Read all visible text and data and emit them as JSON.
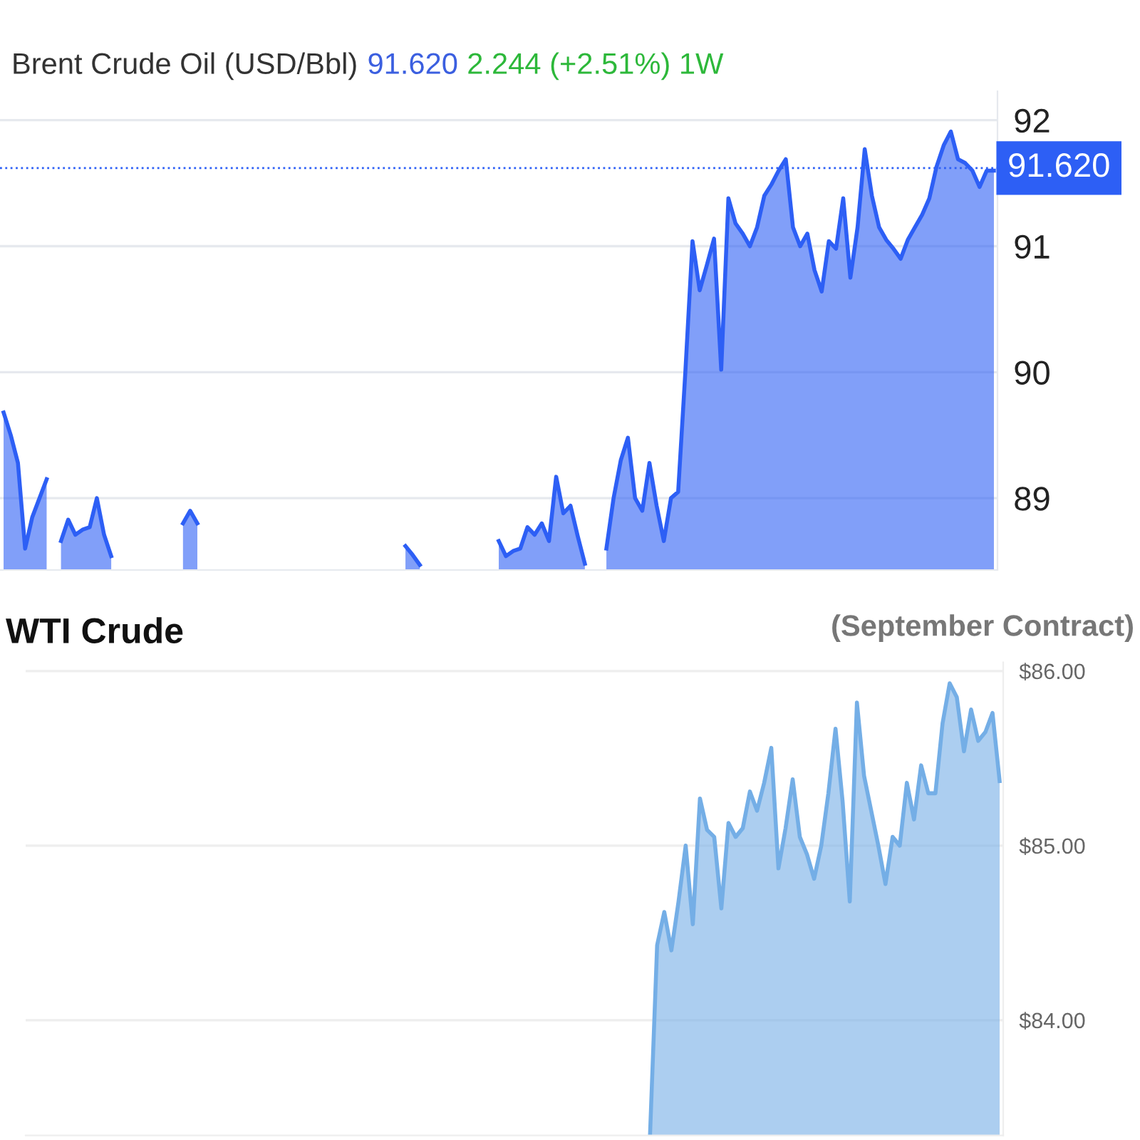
{
  "chart_data": [
    {
      "type": "area",
      "title": "Brent Crude Oil (USD/Bbl)",
      "annotations": [
        "91.620",
        "2.244 (+2.51%) 1W"
      ],
      "categories": [
        null,
        null,
        null,
        null,
        null,
        null,
        null,
        null,
        null,
        null,
        null,
        null,
        null,
        null,
        null,
        null,
        null,
        null,
        null,
        null,
        null,
        null,
        null,
        null,
        null,
        null,
        null,
        null,
        null,
        null,
        null,
        null,
        null,
        null,
        null,
        null,
        null,
        null,
        null,
        null,
        null,
        null,
        null,
        null,
        null,
        null,
        null,
        null,
        null,
        null,
        null,
        null,
        null,
        null,
        null,
        null,
        null,
        null,
        null,
        null,
        null,
        null,
        null,
        null,
        null,
        null,
        null,
        null,
        null,
        null,
        null,
        null,
        null,
        null,
        null,
        null,
        null,
        null,
        null,
        null,
        null,
        null,
        null,
        null,
        null,
        null,
        null,
        null,
        null,
        null,
        null,
        null,
        null,
        null,
        null,
        null,
        null,
        null,
        null,
        null,
        null,
        null,
        null,
        null,
        null,
        null,
        null,
        null,
        null,
        null,
        null,
        null,
        null,
        null,
        null,
        null,
        null,
        null,
        null,
        null,
        null,
        null,
        null,
        null,
        null,
        null,
        null,
        null,
        null,
        null,
        null,
        null,
        null,
        null,
        null,
        null,
        null,
        null,
        null
      ],
      "series": [
        {
          "color": "#2d5ff5",
          "values": [
            89.68,
            89.5,
            89.28,
            88.6,
            88.85,
            89.0,
            89.15,
            null,
            88.66,
            88.83,
            88.71,
            88.75,
            88.77,
            89.0,
            88.71,
            88.54,
            null,
            null,
            null,
            null,
            null,
            null,
            null,
            null,
            null,
            88.8,
            88.9,
            88.8,
            null,
            null,
            null,
            null,
            null,
            null,
            null,
            null,
            null,
            null,
            null,
            null,
            null,
            null,
            null,
            null,
            null,
            null,
            null,
            null,
            null,
            null,
            null,
            null,
            null,
            null,
            null,
            null,
            88.62,
            88.55,
            88.47,
            null,
            null,
            null,
            null,
            null,
            null,
            null,
            null,
            null,
            null,
            88.66,
            88.54,
            88.58,
            88.6,
            88.77,
            88.71,
            88.8,
            88.66,
            89.17,
            88.88,
            88.94,
            88.7,
            88.48,
            null,
            null,
            88.6,
            89.0,
            89.3,
            89.48,
            89.0,
            88.9,
            89.28,
            88.94,
            88.66,
            89.0,
            89.05,
            90.0,
            91.04,
            90.65,
            90.85,
            91.06,
            90.02,
            91.38,
            91.18,
            91.1,
            91.0,
            91.15,
            91.4,
            91.49,
            91.6,
            91.69,
            91.15,
            91.0,
            91.1,
            90.81,
            90.64,
            91.04,
            90.98,
            91.38,
            90.75,
            91.15,
            91.77,
            91.4,
            91.15,
            91.05,
            90.98,
            90.9,
            91.05,
            91.15,
            91.25,
            91.38,
            91.63,
            91.8,
            91.91,
            91.69,
            91.66,
            91.6,
            91.47,
            91.6,
            91.6
          ]
        }
      ],
      "ylim": [
        88.43,
        92.23
      ],
      "yticks": [
        89,
        90,
        91,
        92
      ],
      "grid": "y",
      "ref_lines": [
        {
          "axis": "y",
          "value": 91.62,
          "label": "91.620",
          "color": "#2d5ff5",
          "line_style": "dotted"
        }
      ]
    },
    {
      "type": "area",
      "title": "WTI Crude",
      "subtitle": "(September Contract)",
      "categories": [
        null,
        null,
        null,
        null,
        null,
        null,
        null,
        null,
        null,
        null,
        null,
        null,
        null,
        null,
        null,
        null,
        null,
        null,
        null,
        null,
        null,
        null,
        null,
        null,
        null,
        null,
        null,
        null,
        null,
        null,
        null,
        null,
        null,
        null,
        null,
        null,
        null,
        null,
        null,
        null,
        null,
        null,
        null,
        null,
        null,
        null,
        null,
        null,
        null,
        null,
        null,
        null,
        null,
        null,
        null,
        null,
        null,
        null,
        null,
        null,
        null,
        null,
        null,
        null,
        null,
        null,
        null,
        null,
        null,
        null,
        null,
        null,
        null,
        null,
        null,
        null,
        null,
        null,
        null,
        null,
        null,
        null,
        null,
        null,
        null,
        null,
        null,
        null,
        null,
        null,
        null,
        null,
        null,
        null,
        null,
        null,
        null,
        null,
        null,
        null,
        null,
        null,
        null,
        null,
        null,
        null,
        null,
        null,
        null,
        null,
        null,
        null,
        null,
        null,
        null,
        null,
        null,
        null,
        null,
        null,
        null,
        null,
        null,
        null,
        null,
        null,
        null,
        null,
        null,
        null,
        null,
        null,
        null,
        null,
        null,
        null,
        null
      ],
      "series": [
        {
          "color": "#74aee6",
          "values": [
            null,
            null,
            null,
            null,
            null,
            null,
            null,
            null,
            null,
            null,
            null,
            null,
            null,
            null,
            null,
            null,
            null,
            null,
            null,
            null,
            null,
            null,
            null,
            null,
            null,
            null,
            null,
            null,
            null,
            null,
            null,
            null,
            null,
            null,
            null,
            null,
            null,
            null,
            null,
            null,
            null,
            null,
            null,
            null,
            null,
            null,
            null,
            null,
            null,
            null,
            null,
            null,
            null,
            null,
            null,
            null,
            null,
            null,
            null,
            null,
            null,
            null,
            null,
            null,
            null,
            null,
            null,
            null,
            null,
            null,
            null,
            null,
            null,
            null,
            null,
            null,
            null,
            null,
            null,
            null,
            null,
            null,
            null,
            null,
            null,
            null,
            null,
            83.34,
            84.43,
            84.62,
            84.4,
            84.68,
            85.0,
            84.55,
            85.27,
            85.09,
            85.05,
            84.64,
            85.13,
            85.05,
            85.1,
            85.31,
            85.2,
            85.36,
            85.56,
            84.87,
            85.1,
            85.38,
            85.05,
            84.95,
            84.81,
            85.0,
            85.3,
            85.67,
            85.25,
            84.68,
            85.82,
            85.4,
            85.2,
            85.0,
            84.78,
            85.05,
            85.0,
            85.36,
            85.15,
            85.46,
            85.3,
            85.3,
            85.7,
            85.93,
            85.85,
            85.54,
            85.78,
            85.6,
            85.65,
            85.76,
            85.37
          ]
        }
      ],
      "ylim": [
        83.34,
        86.05
      ],
      "yticks": [
        {
          "value": 84,
          "label": "$84.00"
        },
        {
          "value": 85,
          "label": "$85.00"
        },
        {
          "value": 86,
          "label": "$86.00"
        }
      ],
      "grid": "y"
    }
  ]
}
